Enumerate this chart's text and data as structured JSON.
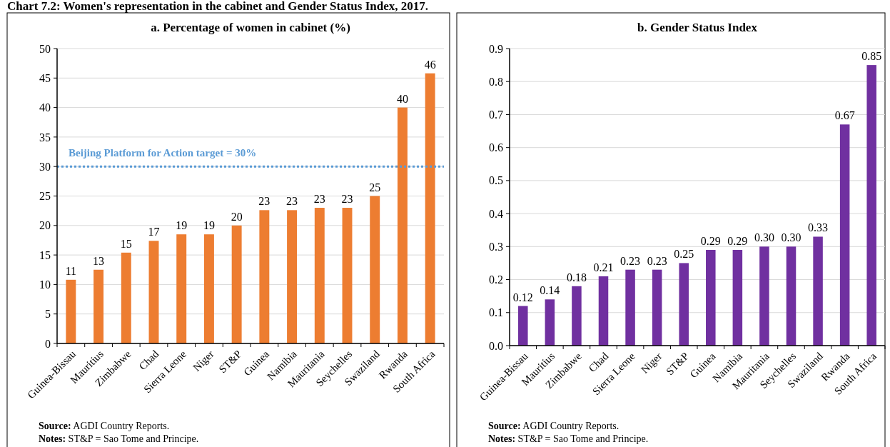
{
  "chart_data": [
    {
      "type": "bar",
      "title": "a. Percentage of women in cabinet (%)",
      "categories": [
        "Guinea-Bissau",
        "Mauritius",
        "Zimbabwe",
        "Chad",
        "Sierra Leone",
        "Niger",
        "ST&P",
        "Guinea",
        "Namibia",
        "Mauritania",
        "Seychelles",
        "Swaziland",
        "Rwanda",
        "South Africa"
      ],
      "series": [
        {
          "color": "#ed7d31",
          "values": [
            10.8,
            12.5,
            15.4,
            17.4,
            18.5,
            18.5,
            20,
            22.6,
            22.6,
            23,
            23,
            25,
            40,
            45.8
          ],
          "value_labels": [
            "11",
            "13",
            "15",
            "17",
            "19",
            "19",
            "20",
            "23",
            "23",
            "23",
            "23",
            "25",
            "40",
            "46"
          ]
        }
      ],
      "ylim": [
        0,
        50
      ],
      "yticks": [
        0,
        5,
        10,
        15,
        20,
        25,
        30,
        35,
        40,
        45,
        50
      ],
      "grid": "y",
      "ref_lines": [
        {
          "axis": "y",
          "value": 30,
          "label": "Beijing Platform for Action target = 30%",
          "color": "#5b9bd5",
          "line_style": "dotted"
        }
      ],
      "annotations": [
        "Chart 7.2: Women's representation in the cabinet and Gender Status Index, 2017.",
        "Source: AGDI Country Reports.",
        "Notes: ST&P = Sao Tome and Principe."
      ]
    },
    {
      "type": "bar",
      "title": "b. Gender Status Index",
      "categories": [
        "Guinea-Bissau",
        "Mauritius",
        "Zimbabwe",
        "Chad",
        "Sierra Leone",
        "Niger",
        "ST&P",
        "Guinea",
        "Namibia",
        "Mauritania",
        "Seychelles",
        "Swaziland",
        "Rwanda",
        "South Africa"
      ],
      "series": [
        {
          "color": "#7030a0",
          "values": [
            0.12,
            0.14,
            0.18,
            0.21,
            0.23,
            0.23,
            0.25,
            0.29,
            0.29,
            0.3,
            0.3,
            0.33,
            0.67,
            0.85
          ],
          "value_labels": [
            "0.12",
            "0.14",
            "0.18",
            "0.21",
            "0.23",
            "0.23",
            "0.25",
            "0.29",
            "0.29",
            "0.30",
            "0.30",
            "0.33",
            "0.67",
            "0.85"
          ]
        }
      ],
      "ylim": [
        0,
        0.9
      ],
      "yticks": [
        {
          "value": 0,
          "label": "0.0"
        },
        0.1,
        0.2,
        0.3,
        0.4,
        0.5,
        0.6,
        0.7,
        0.8,
        0.9
      ],
      "grid": "y",
      "annotations": [
        "Source: AGDI Country Reports.",
        "Notes: ST&P = Sao Tome and Principe."
      ]
    }
  ]
}
